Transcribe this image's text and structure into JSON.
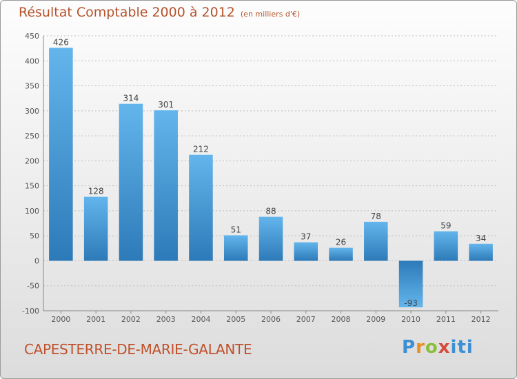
{
  "title": "Résultat Comptable 2000 à 2012",
  "unit_note": "(en milliers d'€)",
  "commune": "CAPESTERRE-DE-MARIE-GALANTE",
  "logo_text": [
    "P",
    "r",
    "o",
    "x",
    "iti"
  ],
  "colors": {
    "bar_light": "#63b5ec",
    "bar_dark": "#2d7ab8",
    "title": "#b5532c"
  },
  "chart_data": {
    "type": "bar",
    "categories": [
      "2000",
      "2001",
      "2002",
      "2003",
      "2004",
      "2005",
      "2006",
      "2007",
      "2008",
      "2009",
      "2010",
      "2011",
      "2012"
    ],
    "values": [
      426,
      128,
      314,
      301,
      212,
      51,
      88,
      37,
      26,
      78,
      -93,
      59,
      34
    ],
    "data_labels": [
      "426",
      "128",
      "314",
      "301",
      "212",
      "51",
      "88",
      "37",
      "26",
      "78",
      "-93",
      "59",
      "34"
    ],
    "ylim": [
      -100,
      450
    ],
    "yticks": [
      -100,
      -50,
      0,
      50,
      100,
      150,
      200,
      250,
      300,
      350,
      400,
      450
    ],
    "ytick_labels": [
      "-100",
      "-50",
      "0",
      "50",
      "100",
      "150",
      "200",
      "250",
      "300",
      "350",
      "400",
      "450"
    ],
    "grid": "horizontal-dotted"
  }
}
